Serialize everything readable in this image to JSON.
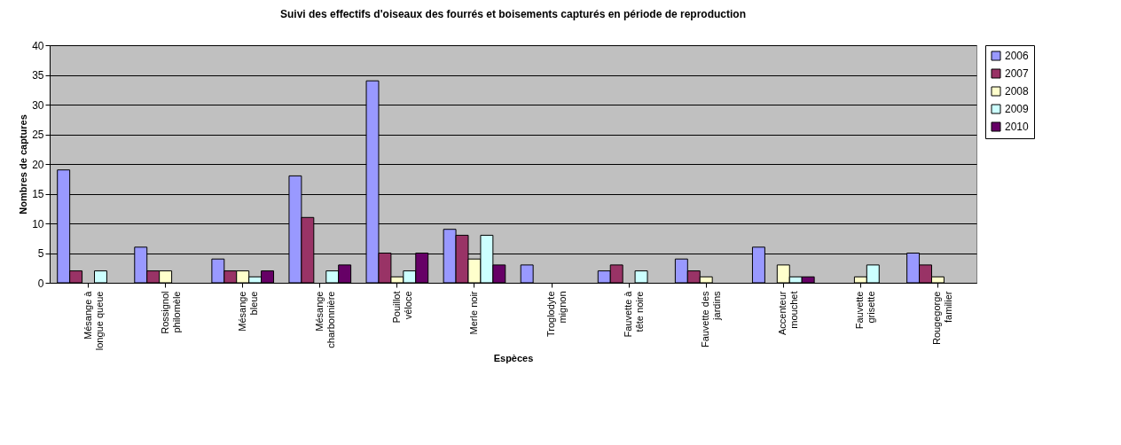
{
  "chart_data": {
    "type": "bar",
    "title": "Suivi des effectifs d'oiseaux des fourrés et boisements capturés en période de reproduction",
    "xlabel": "Espèces",
    "ylabel": "Nombres de captures",
    "categories": [
      "Mésange à\nlongue queue",
      "Rossignol\nphilomèle",
      "Mésange\nbleue",
      "Mésange\ncharbonnière",
      "Pouillot\nvéloce",
      "Merle noir",
      "Troglodyte\nmignon",
      "Fauvette à\ntête noire",
      "Fauvette des\njardins",
      "Accenteur\nmouchet",
      "Fauvette\ngrisette",
      "Rougegorge\nfamilier"
    ],
    "series": [
      {
        "name": "2006",
        "color": "#9999ff",
        "values": [
          19,
          6,
          4,
          18,
          34,
          9,
          3,
          2,
          4,
          6,
          null,
          5
        ]
      },
      {
        "name": "2007",
        "color": "#993366",
        "values": [
          2,
          2,
          2,
          11,
          5,
          8,
          null,
          3,
          2,
          null,
          null,
          3
        ]
      },
      {
        "name": "2008",
        "color": "#ffffcc",
        "values": [
          null,
          2,
          2,
          null,
          1,
          4,
          null,
          null,
          1,
          3,
          1,
          1
        ]
      },
      {
        "name": "2009",
        "color": "#ccffff",
        "values": [
          2,
          null,
          1,
          2,
          2,
          8,
          null,
          2,
          null,
          1,
          3,
          null
        ]
      },
      {
        "name": "2010",
        "color": "#660066",
        "values": [
          null,
          null,
          2,
          3,
          5,
          3,
          null,
          null,
          null,
          1,
          null,
          null
        ]
      }
    ],
    "ylim": [
      0,
      40
    ],
    "yticks": [
      0,
      5,
      10,
      15,
      20,
      25,
      30,
      35,
      40
    ],
    "grid": "y",
    "legend": "right"
  }
}
